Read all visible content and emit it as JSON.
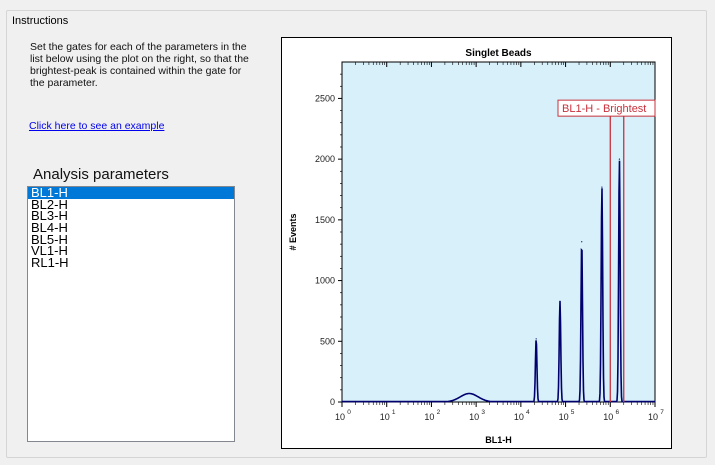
{
  "group": {
    "title": "Instructions"
  },
  "instructions": {
    "text": "Set the gates for each of the parameters in the list below using the plot on the right, so that the brightest-peak is contained within the gate for the parameter.",
    "example_link": "Click here to see an example"
  },
  "analysis": {
    "label": "Analysis parameters",
    "items": [
      "BL1-H",
      "BL2-H",
      "BL3-H",
      "BL4-H",
      "BL5-H",
      "VL1-H",
      "RL1-H"
    ],
    "selected": "BL1-H"
  },
  "colors": {
    "selection": "#0078d7",
    "histogram": "#00006e",
    "gate": "#c8323c",
    "plot_bg": "#d7f0fa"
  },
  "chart_data": {
    "type": "line",
    "title": "Singlet Beads",
    "xlabel": "BL1-H",
    "ylabel": "# Events",
    "x_scale": "log",
    "xlim": [
      1,
      10000000
    ],
    "ylim": [
      0,
      2800
    ],
    "x_ticks": [
      {
        "base": "10",
        "exp": "0"
      },
      {
        "base": "10",
        "exp": "1"
      },
      {
        "base": "10",
        "exp": "2"
      },
      {
        "base": "10",
        "exp": "3"
      },
      {
        "base": "10",
        "exp": "4"
      },
      {
        "base": "10",
        "exp": "5"
      },
      {
        "base": "10",
        "exp": "6"
      },
      {
        "base": "10",
        "exp": "7"
      }
    ],
    "y_ticks": [
      "0",
      "500",
      "1000",
      "1500",
      "2000",
      "2500"
    ],
    "peaks": [
      {
        "x": 700,
        "y": 70
      },
      {
        "x": 22000,
        "y": 520
      },
      {
        "x": 75000,
        "y": 830
      },
      {
        "x": 230000,
        "y": 1320
      },
      {
        "x": 650000,
        "y": 1770
      },
      {
        "x": 1600000,
        "y": 2000
      }
    ],
    "gate": {
      "label": "BL1-H - Brightest",
      "x_start": 1000000,
      "x_end": 2000000
    }
  }
}
